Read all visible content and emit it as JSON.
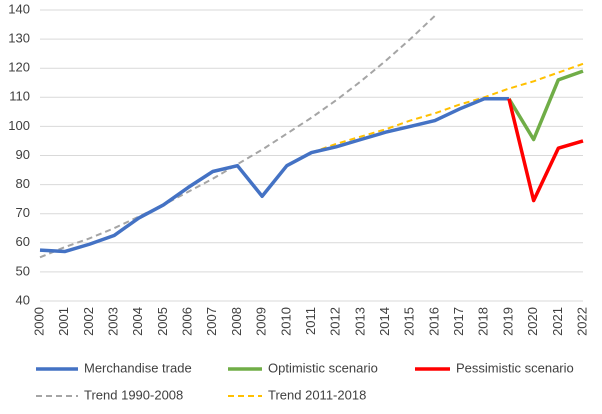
{
  "chart_data": {
    "type": "line",
    "categories": [
      "2000",
      "2001",
      "2002",
      "2003",
      "2004",
      "2005",
      "2006",
      "2007",
      "2008",
      "2009",
      "2010",
      "2011",
      "2012",
      "2013",
      "2014",
      "2015",
      "2016",
      "2017",
      "2018",
      "2019",
      "2020",
      "2021",
      "2022"
    ],
    "ylim": [
      40,
      140
    ],
    "yticks": [
      40,
      50,
      60,
      70,
      80,
      90,
      100,
      110,
      120,
      130,
      140
    ],
    "grid": true,
    "series": [
      {
        "name": "Merchandise trade",
        "color": "#4472c4",
        "dash": false,
        "values": [
          57.5,
          57,
          59.5,
          62.5,
          68.5,
          73,
          79,
          84.5,
          86.5,
          76,
          86.5,
          91,
          93,
          95.5,
          98,
          100,
          102,
          106,
          109.5,
          109.5,
          null,
          null,
          null
        ]
      },
      {
        "name": "Optimistic scenario",
        "color": "#70ad47",
        "dash": false,
        "values": [
          null,
          null,
          null,
          null,
          null,
          null,
          null,
          null,
          null,
          null,
          null,
          null,
          null,
          null,
          null,
          null,
          null,
          null,
          null,
          109.5,
          95.5,
          116,
          119
        ]
      },
      {
        "name": "Pessimistic scenario",
        "color": "#ff0000",
        "dash": false,
        "values": [
          null,
          null,
          null,
          null,
          null,
          null,
          null,
          null,
          null,
          null,
          null,
          null,
          null,
          null,
          null,
          null,
          null,
          null,
          null,
          109.5,
          74.5,
          92.5,
          95
        ]
      },
      {
        "name": "Trend 1990-2008",
        "color": "#a5a5a5",
        "dash": true,
        "values": [
          55,
          58.5,
          61.5,
          65,
          69,
          73,
          77.5,
          82,
          87,
          92,
          97.5,
          103,
          109,
          115.5,
          122.5,
          130,
          138,
          null,
          null,
          null,
          null,
          null,
          null
        ]
      },
      {
        "name": "Trend 2011-2018",
        "color": "#ffc000",
        "dash": true,
        "values": [
          null,
          null,
          null,
          null,
          null,
          null,
          null,
          null,
          null,
          null,
          null,
          91,
          94,
          96.5,
          99,
          102,
          104.5,
          107.5,
          110,
          113,
          115.5,
          118.5,
          121.5
        ]
      }
    ]
  }
}
